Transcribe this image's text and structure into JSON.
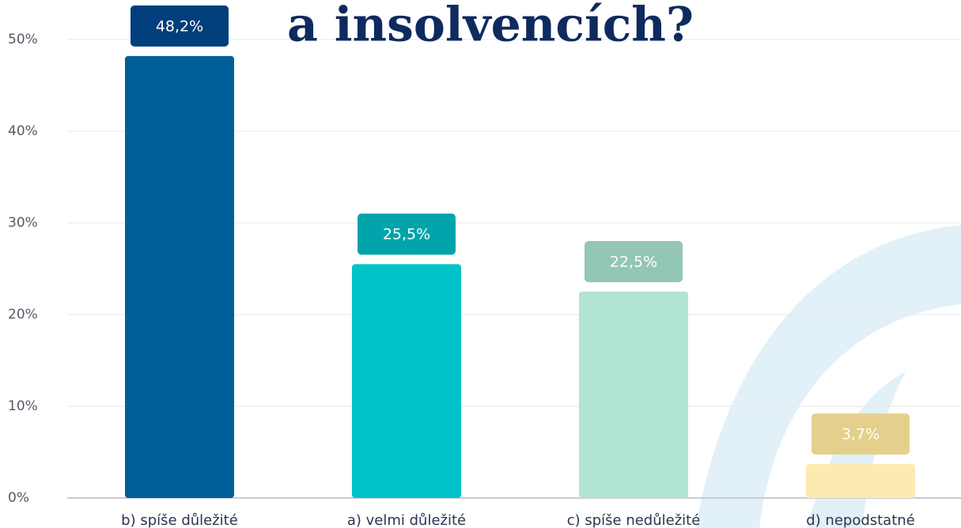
{
  "chart_data": {
    "type": "bar",
    "title": "a insolvencích?",
    "categories": [
      "b) spíše důležité",
      "a) velmi důležité",
      "c) spíše nedůležité",
      "d) nepodstatné"
    ],
    "values": [
      48.2,
      25.5,
      22.5,
      3.7
    ],
    "value_labels": [
      "48,2%",
      "25,5%",
      "22,5%",
      "3,7%"
    ],
    "colors": [
      "#005f99",
      "#00c3c8",
      "#b1e4d4",
      "#fdeab0"
    ],
    "label_colors": [
      "#003f7c",
      "#00a4aa",
      "#93c6b4",
      "#e4d08c"
    ],
    "ylim": [
      0,
      50
    ],
    "yticks": [
      {
        "value": 0,
        "label": "0%"
      },
      {
        "value": 10,
        "label": "10%"
      },
      {
        "value": 20,
        "label": "20%"
      },
      {
        "value": 30,
        "label": "30%"
      },
      {
        "value": 40,
        "label": "40%"
      },
      {
        "value": 50,
        "label": "50%"
      }
    ],
    "grid": true
  }
}
